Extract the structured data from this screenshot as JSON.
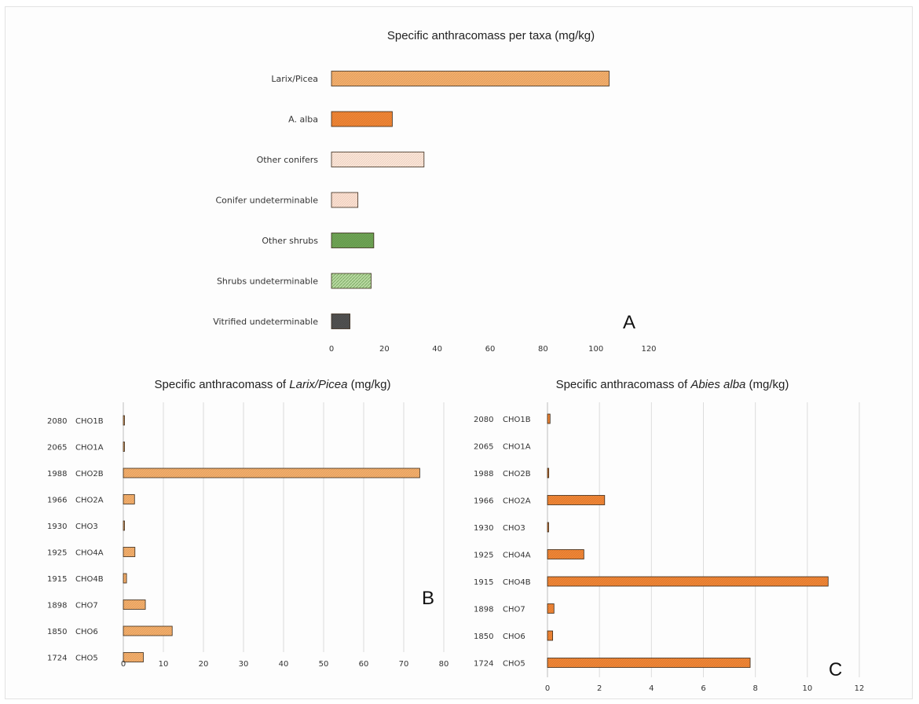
{
  "colors": {
    "larix": "#f4ae6a",
    "abies": "#f08535",
    "other_conifers": "#fde5d6",
    "conifer_undet": "#fde0d0",
    "other_shrubs": "#6ea454",
    "shrubs_undet": "#b8d9a0",
    "vitrified": "#505050",
    "bar_stroke": "#3a2a1a",
    "grid": "#dcdcdc"
  },
  "chart_data": [
    {
      "id": "A",
      "type": "bar",
      "orientation": "horizontal",
      "title": "Specific anthracomass per taxa (mg/kg)",
      "panel_label": "A",
      "categories": [
        "Larix/Picea",
        "A. alba",
        "Other conifers",
        "Conifer undeterminable",
        "Other shrubs",
        "Shrubs undeterminable",
        "Vitrified undeterminable"
      ],
      "values": [
        105,
        23,
        35,
        10,
        16,
        15,
        7
      ],
      "bar_colors": [
        "larix",
        "abies",
        "other_conifers",
        "conifer_undet",
        "other_shrubs",
        "shrubs_undet",
        "vitrified"
      ],
      "xlim": [
        0,
        120
      ],
      "xticks": [
        "0",
        "20",
        "40",
        "60",
        "80",
        "100",
        "120"
      ],
      "grid": false
    },
    {
      "id": "B",
      "type": "bar",
      "orientation": "horizontal",
      "title_prefix": "Specific anthracomass of ",
      "title_italic": "Larix/Picea",
      "title_suffix": " (mg/kg)",
      "panel_label": "B",
      "years": [
        "2080",
        "2065",
        "1988",
        "1966",
        "1930",
        "1925",
        "1915",
        "1898",
        "1850",
        "1724"
      ],
      "samples": [
        "CHO1B",
        "CHO1A",
        "CHO2B",
        "CHO2A",
        "CHO3",
        "CHO4A",
        "CHO4B",
        "CHO7",
        "CHO6",
        "CHO5"
      ],
      "values": [
        0.3,
        0.1,
        74,
        2.8,
        0.3,
        2.9,
        0.8,
        5.5,
        12.2,
        5.0
      ],
      "bar_color": "larix",
      "xlim": [
        0,
        80
      ],
      "xticks": [
        "0",
        "10",
        "20",
        "30",
        "40",
        "50",
        "60",
        "70",
        "80"
      ],
      "grid": true
    },
    {
      "id": "C",
      "type": "bar",
      "orientation": "horizontal",
      "title_prefix": "Specific anthracomass of ",
      "title_italic": "Abies alba",
      "title_suffix": " (mg/kg)",
      "panel_label": "C",
      "years": [
        "2080",
        "2065",
        "1988",
        "1966",
        "1930",
        "1925",
        "1915",
        "1898",
        "1850",
        "1724"
      ],
      "samples": [
        "CHO1B",
        "CHO1A",
        "CHO2B",
        "CHO2A",
        "CHO3",
        "CHO4A",
        "CHO4B",
        "CHO7",
        "CHO6",
        "CHO5"
      ],
      "values": [
        0.1,
        0.0,
        0.05,
        2.2,
        0.02,
        1.4,
        10.8,
        0.25,
        0.2,
        7.8
      ],
      "bar_color": "abies",
      "xlim": [
        0,
        12
      ],
      "xticks": [
        "0",
        "2",
        "4",
        "6",
        "8",
        "10",
        "12"
      ],
      "grid": true
    }
  ]
}
